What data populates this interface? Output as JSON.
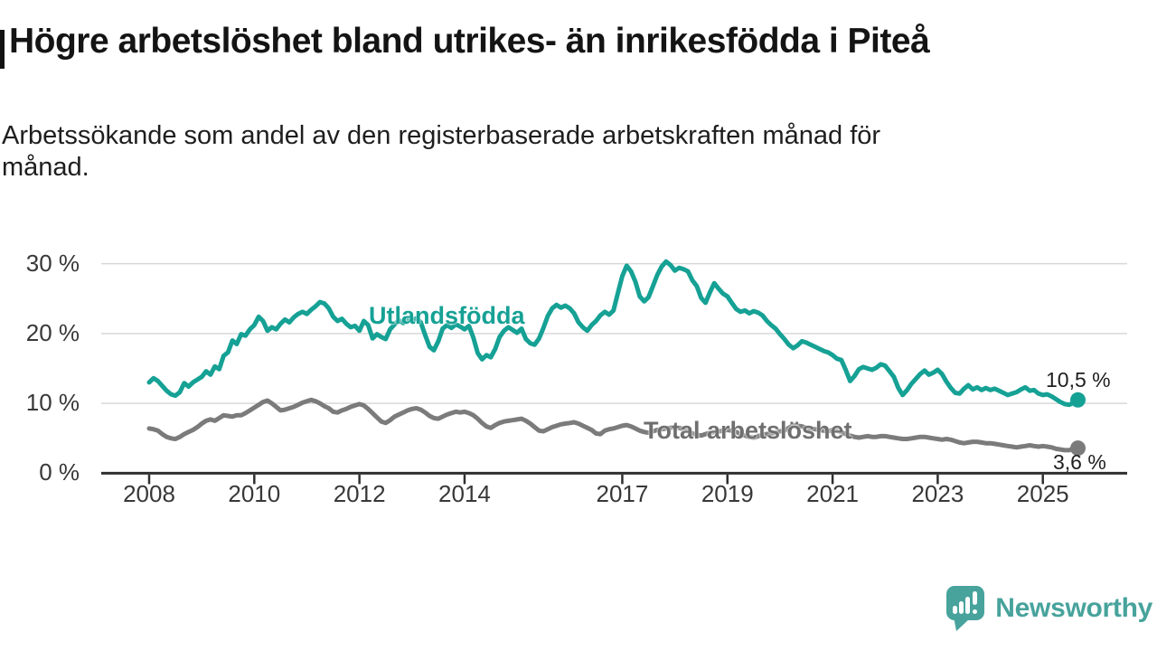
{
  "title": "Högre arbetslöshet bland utrikes- än inrikesfödda i Piteå",
  "subtitle": {
    "line1": "Arbetssökande som andel av den registerbaserade arbetskraften månad för",
    "line2": "månad."
  },
  "branding": {
    "name": "Newsworthy",
    "logo_color": "#47a39c",
    "logo_icon": "newsworthy-speech-bubble-barchart-icon"
  },
  "chart_data": {
    "type": "line",
    "unit": "%",
    "grid": "horizontal",
    "x_start_year": 2008,
    "points_per_year": 12,
    "xlim": [
      2007.1,
      2026.6
    ],
    "ylim": [
      0,
      32
    ],
    "y_ticks": [
      {
        "value": 0,
        "label": "0 %"
      },
      {
        "value": 10,
        "label": "10 %"
      },
      {
        "value": 20,
        "label": "20 %"
      },
      {
        "value": 30,
        "label": "30 %"
      }
    ],
    "x_ticks": [
      {
        "value": 2008,
        "label": "2008"
      },
      {
        "value": 2010,
        "label": "2010"
      },
      {
        "value": 2012,
        "label": "2012"
      },
      {
        "value": 2014,
        "label": "2014"
      },
      {
        "value": 2017,
        "label": "2017"
      },
      {
        "value": 2019,
        "label": "2019"
      },
      {
        "value": 2021,
        "label": "2021"
      },
      {
        "value": 2023,
        "label": "2023"
      },
      {
        "value": 2025,
        "label": "2025"
      }
    ],
    "series": [
      {
        "name": "Utlandsfödda",
        "slug": "utlandsfodda",
        "color": "#16a195",
        "end_value": 10.5,
        "end_label": "10,5 %",
        "values": [
          13.0,
          13.6,
          13.2,
          12.5,
          11.8,
          11.3,
          11.1,
          11.6,
          12.9,
          12.4,
          13.0,
          13.4,
          13.8,
          14.6,
          14.1,
          15.3,
          14.9,
          16.8,
          17.3,
          19.0,
          18.5,
          19.9,
          19.7,
          20.6,
          21.2,
          22.4,
          21.8,
          20.4,
          20.9,
          20.6,
          21.4,
          22.0,
          21.6,
          22.3,
          22.8,
          23.1,
          22.8,
          23.4,
          23.9,
          24.5,
          24.3,
          23.6,
          22.4,
          21.8,
          22.1,
          21.4,
          20.9,
          21.1,
          20.4,
          21.8,
          21.2,
          19.3,
          19.9,
          19.5,
          19.2,
          20.6,
          21.3,
          21.9,
          21.5,
          22.1,
          21.7,
          22.2,
          21.6,
          19.8,
          18.1,
          17.6,
          18.9,
          20.7,
          21.2,
          20.8,
          21.3,
          21.0,
          20.6,
          21.1,
          19.4,
          17.2,
          16.3,
          16.9,
          16.6,
          17.8,
          19.5,
          20.4,
          20.9,
          20.5,
          20.1,
          20.7,
          19.2,
          18.6,
          18.4,
          19.3,
          20.8,
          22.5,
          23.6,
          24.1,
          23.7,
          24.0,
          23.6,
          22.9,
          21.6,
          20.9,
          20.4,
          21.2,
          21.8,
          22.6,
          23.1,
          22.7,
          23.3,
          25.8,
          28.2,
          29.7,
          28.9,
          27.4,
          25.3,
          24.6,
          25.2,
          26.8,
          28.4,
          29.6,
          30.3,
          29.8,
          29.0,
          29.4,
          29.2,
          28.9,
          27.6,
          26.8,
          25.1,
          24.4,
          25.9,
          27.2,
          26.4,
          25.7,
          25.3,
          24.4,
          23.5,
          23.1,
          23.3,
          22.9,
          23.2,
          23.0,
          22.6,
          21.8,
          21.2,
          20.7,
          19.9,
          19.2,
          18.4,
          17.9,
          18.3,
          18.9,
          18.7,
          18.4,
          18.1,
          17.8,
          17.5,
          17.3,
          16.9,
          16.4,
          16.2,
          14.8,
          13.2,
          13.9,
          14.9,
          15.2,
          15.0,
          14.8,
          15.1,
          15.6,
          15.4,
          14.6,
          13.8,
          12.2,
          11.2,
          11.9,
          12.8,
          13.5,
          14.2,
          14.7,
          14.1,
          14.4,
          14.8,
          14.2,
          13.1,
          12.2,
          11.5,
          11.4,
          12.1,
          12.6,
          12.0,
          12.3,
          11.9,
          12.2,
          11.9,
          12.1,
          11.8,
          11.5,
          11.2,
          11.4,
          11.6,
          12.0,
          12.3,
          11.8,
          11.9,
          11.4,
          11.2,
          11.3,
          11.0,
          10.6,
          10.2,
          9.9,
          9.8,
          10.1,
          10.5
        ]
      },
      {
        "name": "Total arbetslöshet",
        "slug": "total-arbetsloshet",
        "color": "#7b7b7b",
        "end_value": 3.6,
        "end_label": "3,6 %",
        "values": [
          6.4,
          6.3,
          6.1,
          5.6,
          5.2,
          5.0,
          4.9,
          5.2,
          5.6,
          5.9,
          6.2,
          6.6,
          7.1,
          7.5,
          7.7,
          7.5,
          7.9,
          8.3,
          8.2,
          8.1,
          8.3,
          8.3,
          8.6,
          9.0,
          9.4,
          9.8,
          10.2,
          10.4,
          10.0,
          9.5,
          9.0,
          9.1,
          9.3,
          9.5,
          9.8,
          10.1,
          10.3,
          10.5,
          10.3,
          10.0,
          9.6,
          9.3,
          8.8,
          8.7,
          9.0,
          9.2,
          9.5,
          9.7,
          9.9,
          9.7,
          9.2,
          8.6,
          8.0,
          7.4,
          7.2,
          7.6,
          8.1,
          8.4,
          8.7,
          9.0,
          9.2,
          9.3,
          9.1,
          8.7,
          8.2,
          7.9,
          7.8,
          8.1,
          8.4,
          8.6,
          8.8,
          8.7,
          8.8,
          8.6,
          8.3,
          7.8,
          7.2,
          6.7,
          6.5,
          6.9,
          7.2,
          7.4,
          7.5,
          7.6,
          7.7,
          7.8,
          7.5,
          7.1,
          6.6,
          6.1,
          6.0,
          6.3,
          6.6,
          6.8,
          7.0,
          7.1,
          7.2,
          7.3,
          7.1,
          6.8,
          6.5,
          6.2,
          5.7,
          5.6,
          6.1,
          6.3,
          6.4,
          6.6,
          6.8,
          6.9,
          6.7,
          6.4,
          6.1,
          5.9,
          5.8,
          6.0,
          6.2,
          6.3,
          6.4,
          6.5,
          6.6,
          6.5,
          6.3,
          6.0,
          5.7,
          5.5,
          5.4,
          5.6,
          5.8,
          5.9,
          6.0,
          6.1,
          6.2,
          6.1,
          5.9,
          5.6,
          5.4,
          5.2,
          5.1,
          5.3,
          5.5,
          5.6,
          5.7,
          5.8,
          6.0,
          6.1,
          6.5,
          6.9,
          6.8,
          6.7,
          6.5,
          6.4,
          6.3,
          6.2,
          6.1,
          6.0,
          6.2,
          6.1,
          5.9,
          5.6,
          5.4,
          5.2,
          5.1,
          5.2,
          5.3,
          5.2,
          5.2,
          5.3,
          5.3,
          5.2,
          5.1,
          5.0,
          4.9,
          4.9,
          5.0,
          5.1,
          5.2,
          5.2,
          5.1,
          5.0,
          4.9,
          4.8,
          4.9,
          4.8,
          4.6,
          4.4,
          4.3,
          4.4,
          4.5,
          4.5,
          4.4,
          4.3,
          4.3,
          4.2,
          4.1,
          4.0,
          3.9,
          3.8,
          3.7,
          3.8,
          3.9,
          4.0,
          3.9,
          3.8,
          3.9,
          3.8,
          3.7,
          3.5,
          3.4,
          3.3,
          3.3,
          3.5,
          3.6
        ]
      }
    ]
  }
}
